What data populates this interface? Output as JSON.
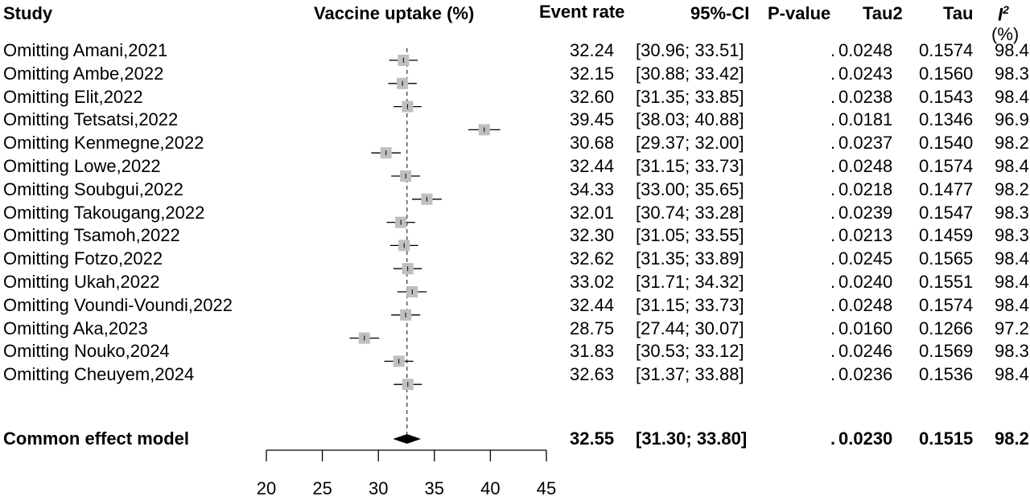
{
  "headers": {
    "study": "Study",
    "vaccine_uptake": "Vaccine uptake (%)",
    "event_rate": "Event rate",
    "ci": "95%-CI",
    "p_value": "P-value",
    "tau2": "Tau2",
    "tau": "Tau",
    "i2_letter": "I",
    "i2_sup": "2",
    "i2_unit": "(%)"
  },
  "rows": [
    {
      "study": "Omitting Amani,2021",
      "event_rate": "32.24",
      "ci": "[30.96; 33.51]",
      "p": ".",
      "tau2": "0.0248",
      "tau": "0.1574",
      "i2": "98.4"
    },
    {
      "study": "Omitting Ambe,2022",
      "event_rate": "32.15",
      "ci": "[30.88; 33.42]",
      "p": ".",
      "tau2": "0.0243",
      "tau": "0.1560",
      "i2": "98.3"
    },
    {
      "study": "Omitting Elit,2022",
      "event_rate": "32.60",
      "ci": "[31.35; 33.85]",
      "p": ".",
      "tau2": "0.0238",
      "tau": "0.1543",
      "i2": "98.4"
    },
    {
      "study": "Omitting Tetsatsi,2022",
      "event_rate": "39.45",
      "ci": "[38.03; 40.88]",
      "p": ".",
      "tau2": "0.0181",
      "tau": "0.1346",
      "i2": "96.9"
    },
    {
      "study": "Omitting Kenmegne,2022",
      "event_rate": "30.68",
      "ci": "[29.37; 32.00]",
      "p": ".",
      "tau2": "0.0237",
      "tau": "0.1540",
      "i2": "98.2"
    },
    {
      "study": "Omitting Lowe,2022",
      "event_rate": "32.44",
      "ci": "[31.15; 33.73]",
      "p": ".",
      "tau2": "0.0248",
      "tau": "0.1574",
      "i2": "98.4"
    },
    {
      "study": "Omitting Soubgui,2022",
      "event_rate": "34.33",
      "ci": "[33.00; 35.65]",
      "p": ".",
      "tau2": "0.0218",
      "tau": "0.1477",
      "i2": "98.2"
    },
    {
      "study": "Omitting Takougang,2022",
      "event_rate": "32.01",
      "ci": "[30.74; 33.28]",
      "p": ".",
      "tau2": "0.0239",
      "tau": "0.1547",
      "i2": "98.3"
    },
    {
      "study": "Omitting Tsamoh,2022",
      "event_rate": "32.30",
      "ci": "[31.05; 33.55]",
      "p": ".",
      "tau2": "0.0213",
      "tau": "0.1459",
      "i2": "98.3"
    },
    {
      "study": "Omitting Fotzo,2022",
      "event_rate": "32.62",
      "ci": "[31.35; 33.89]",
      "p": ".",
      "tau2": "0.0245",
      "tau": "0.1565",
      "i2": "98.4"
    },
    {
      "study": "Omitting Ukah,2022",
      "event_rate": "33.02",
      "ci": "[31.71; 34.32]",
      "p": ".",
      "tau2": "0.0240",
      "tau": "0.1551",
      "i2": "98.4"
    },
    {
      "study": "Omitting Voundi-Voundi,2022",
      "event_rate": "32.44",
      "ci": "[31.15; 33.73]",
      "p": ".",
      "tau2": "0.0248",
      "tau": "0.1574",
      "i2": "98.4"
    },
    {
      "study": "Omitting Aka,2023",
      "event_rate": "28.75",
      "ci": "[27.44; 30.07]",
      "p": ".",
      "tau2": "0.0160",
      "tau": "0.1266",
      "i2": "97.2"
    },
    {
      "study": "Omitting Nouko,2024",
      "event_rate": "31.83",
      "ci": "[30.53; 33.12]",
      "p": ".",
      "tau2": "0.0246",
      "tau": "0.1569",
      "i2": "98.3"
    },
    {
      "study": "Omitting Cheuyem,2024",
      "event_rate": "32.63",
      "ci": "[31.37; 33.88]",
      "p": ".",
      "tau2": "0.0236",
      "tau": "0.1536",
      "i2": "98.4"
    }
  ],
  "summary": {
    "study": "Common effect model",
    "event_rate": "32.55",
    "ci": "[31.30; 33.80]",
    "p": ".",
    "tau2": "0.0230",
    "tau": "0.1515",
    "i2": "98.2"
  },
  "chart_data": {
    "type": "forest",
    "xlabel": "Vaccine uptake (%)",
    "xlim": [
      20,
      45
    ],
    "ticks": [
      20,
      25,
      30,
      35,
      40,
      45
    ],
    "reference_line": 32.55,
    "estimates": [
      {
        "est": 32.24,
        "lo": 30.96,
        "hi": 33.51
      },
      {
        "est": 32.15,
        "lo": 30.88,
        "hi": 33.42
      },
      {
        "est": 32.6,
        "lo": 31.35,
        "hi": 33.85
      },
      {
        "est": 39.45,
        "lo": 38.03,
        "hi": 40.88
      },
      {
        "est": 30.68,
        "lo": 29.37,
        "hi": 32.0
      },
      {
        "est": 32.44,
        "lo": 31.15,
        "hi": 33.73
      },
      {
        "est": 34.33,
        "lo": 33.0,
        "hi": 35.65
      },
      {
        "est": 32.01,
        "lo": 30.74,
        "hi": 33.28
      },
      {
        "est": 32.3,
        "lo": 31.05,
        "hi": 33.55
      },
      {
        "est": 32.62,
        "lo": 31.35,
        "hi": 33.89
      },
      {
        "est": 33.02,
        "lo": 31.71,
        "hi": 34.32
      },
      {
        "est": 32.44,
        "lo": 31.15,
        "hi": 33.73
      },
      {
        "est": 28.75,
        "lo": 27.44,
        "hi": 30.07
      },
      {
        "est": 31.83,
        "lo": 30.53,
        "hi": 33.12
      },
      {
        "est": 32.63,
        "lo": 31.37,
        "hi": 33.88
      }
    ],
    "pooled": {
      "est": 32.55,
      "lo": 31.3,
      "hi": 33.8
    },
    "colors": {
      "box": "#bfbfbf",
      "line": "#000000",
      "diamond": "#000000"
    }
  }
}
